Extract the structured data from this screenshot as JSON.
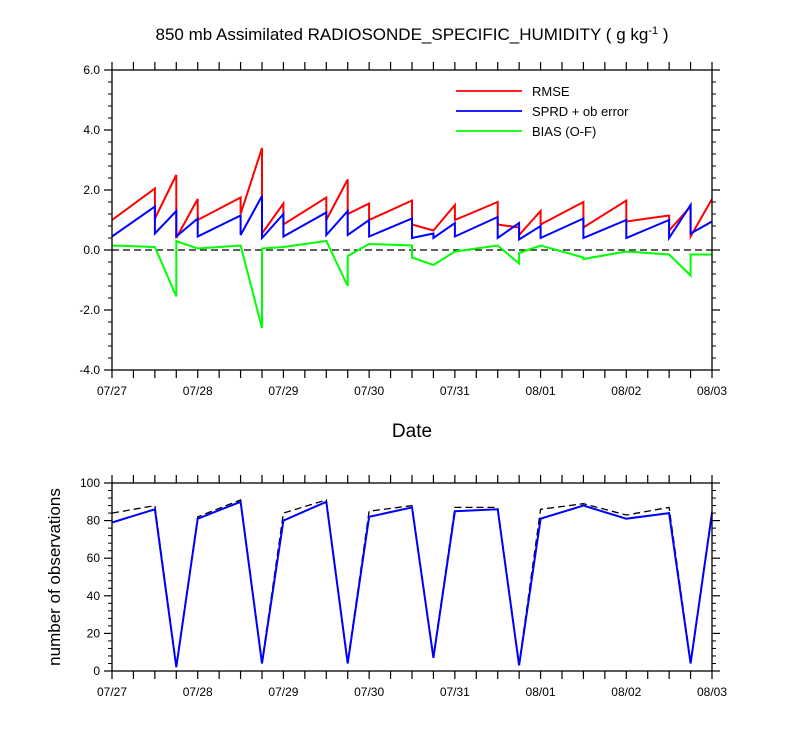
{
  "chart_data": [
    {
      "type": "line",
      "title": "850 mb Assimilated RADIOSONDE_SPECIFIC_HUMIDITY ( g kg",
      "title_superscript": "-1",
      "title_suffix": " )",
      "xlabel": "Date",
      "ylabel": "",
      "xlim": [
        0,
        7
      ],
      "ylim": [
        -4,
        6
      ],
      "yticks": [
        -4,
        -2,
        0,
        2,
        4,
        6
      ],
      "ytick_labels": [
        "-4.0",
        "-2.0",
        "0.0",
        "2.0",
        "4.0",
        "6.0"
      ],
      "xticks": [
        0,
        1,
        2,
        3,
        4,
        5,
        6,
        7
      ],
      "xtick_labels": [
        "07/27",
        "07/28",
        "07/29",
        "07/30",
        "07/31",
        "08/01",
        "08/02",
        "08/03"
      ],
      "zero_line": "dashed",
      "legend_position": "top-right",
      "series": [
        {
          "name": "RMSE",
          "color": "#ff0000",
          "points": [
            [
              0.0,
              1.0
            ],
            [
              0.5,
              2.05
            ],
            [
              0.5,
              1.05
            ],
            [
              0.75,
              2.5
            ],
            [
              0.75,
              0.4
            ],
            [
              1.0,
              1.7
            ],
            [
              1.0,
              1.0
            ],
            [
              1.5,
              1.75
            ],
            [
              1.5,
              1.2
            ],
            [
              1.75,
              3.4
            ],
            [
              1.75,
              0.55
            ],
            [
              2.0,
              1.55
            ],
            [
              2.0,
              0.85
            ],
            [
              2.5,
              1.75
            ],
            [
              2.5,
              1.0
            ],
            [
              2.75,
              2.35
            ],
            [
              2.75,
              1.2
            ],
            [
              3.0,
              1.55
            ],
            [
              3.0,
              1.0
            ],
            [
              3.5,
              1.65
            ],
            [
              3.5,
              0.85
            ],
            [
              3.75,
              0.65
            ],
            [
              4.0,
              1.5
            ],
            [
              4.0,
              1.0
            ],
            [
              4.5,
              1.6
            ],
            [
              4.5,
              0.85
            ],
            [
              4.75,
              0.75
            ],
            [
              4.75,
              0.5
            ],
            [
              5.0,
              1.3
            ],
            [
              5.0,
              0.85
            ],
            [
              5.5,
              1.6
            ],
            [
              5.5,
              0.75
            ],
            [
              6.0,
              1.65
            ],
            [
              6.0,
              0.95
            ],
            [
              6.5,
              1.15
            ],
            [
              6.5,
              0.65
            ],
            [
              6.75,
              1.45
            ],
            [
              6.75,
              0.45
            ],
            [
              7.0,
              1.7
            ]
          ]
        },
        {
          "name": "SPRD + ob error",
          "color": "#0000ff",
          "points": [
            [
              0.0,
              0.45
            ],
            [
              0.5,
              1.45
            ],
            [
              0.5,
              0.55
            ],
            [
              0.75,
              1.3
            ],
            [
              0.75,
              0.45
            ],
            [
              1.0,
              1.05
            ],
            [
              1.0,
              0.45
            ],
            [
              1.5,
              1.15
            ],
            [
              1.5,
              0.5
            ],
            [
              1.75,
              1.8
            ],
            [
              1.75,
              0.4
            ],
            [
              2.0,
              1.2
            ],
            [
              2.0,
              0.45
            ],
            [
              2.5,
              1.25
            ],
            [
              2.5,
              0.5
            ],
            [
              2.75,
              1.3
            ],
            [
              2.75,
              0.5
            ],
            [
              3.0,
              1.0
            ],
            [
              3.0,
              0.45
            ],
            [
              3.5,
              1.05
            ],
            [
              3.5,
              0.4
            ],
            [
              3.75,
              0.55
            ],
            [
              3.75,
              0.4
            ],
            [
              4.0,
              0.9
            ],
            [
              4.0,
              0.45
            ],
            [
              4.5,
              1.1
            ],
            [
              4.5,
              0.4
            ],
            [
              4.75,
              0.9
            ],
            [
              4.75,
              0.35
            ],
            [
              5.0,
              0.8
            ],
            [
              5.0,
              0.4
            ],
            [
              5.5,
              1.05
            ],
            [
              5.5,
              0.4
            ],
            [
              6.0,
              1.0
            ],
            [
              6.0,
              0.4
            ],
            [
              6.5,
              1.0
            ],
            [
              6.5,
              0.4
            ],
            [
              6.75,
              1.5
            ],
            [
              6.75,
              0.55
            ],
            [
              7.0,
              0.95
            ]
          ]
        },
        {
          "name": "BIAS (O-F)",
          "color": "#00ff00",
          "points": [
            [
              0.0,
              0.15
            ],
            [
              0.5,
              0.1
            ],
            [
              0.75,
              -1.55
            ],
            [
              0.75,
              0.3
            ],
            [
              1.0,
              0.05
            ],
            [
              1.5,
              0.15
            ],
            [
              1.75,
              -2.6
            ],
            [
              1.75,
              0.05
            ],
            [
              2.0,
              0.1
            ],
            [
              2.5,
              0.3
            ],
            [
              2.75,
              -1.2
            ],
            [
              2.75,
              -0.2
            ],
            [
              3.0,
              0.2
            ],
            [
              3.5,
              0.15
            ],
            [
              3.5,
              -0.25
            ],
            [
              3.75,
              -0.5
            ],
            [
              4.0,
              -0.05
            ],
            [
              4.5,
              0.15
            ],
            [
              4.75,
              -0.45
            ],
            [
              4.75,
              -0.1
            ],
            [
              5.0,
              0.15
            ],
            [
              5.5,
              -0.25
            ],
            [
              5.5,
              -0.3
            ],
            [
              6.0,
              -0.05
            ],
            [
              6.5,
              -0.15
            ],
            [
              6.75,
              -0.85
            ],
            [
              6.75,
              -0.15
            ],
            [
              7.0,
              -0.15
            ]
          ]
        }
      ]
    },
    {
      "type": "line",
      "title": "",
      "xlabel": "",
      "ylabel": "number of observations",
      "xlim": [
        0,
        7
      ],
      "ylim": [
        0,
        100
      ],
      "yticks": [
        0,
        20,
        40,
        60,
        80,
        100
      ],
      "ytick_labels": [
        "0",
        "20",
        "40",
        "60",
        "80",
        "100"
      ],
      "xticks": [
        0,
        1,
        2,
        3,
        4,
        5,
        6,
        7
      ],
      "xtick_labels": [
        "07/27",
        "07/28",
        "07/29",
        "07/30",
        "07/31",
        "08/01",
        "08/02",
        "08/03"
      ],
      "series": [
        {
          "style": "dashed",
          "color": "#000000",
          "points": [
            [
              0.0,
              84
            ],
            [
              0.5,
              88
            ],
            [
              0.75,
              3
            ],
            [
              1.0,
              82
            ],
            [
              1.5,
              91
            ],
            [
              1.75,
              5
            ],
            [
              2.0,
              84
            ],
            [
              2.5,
              91
            ],
            [
              2.75,
              5
            ],
            [
              3.0,
              85
            ],
            [
              3.5,
              88
            ],
            [
              3.75,
              8
            ],
            [
              4.0,
              87
            ],
            [
              4.5,
              87
            ],
            [
              4.75,
              4
            ],
            [
              5.0,
              86
            ],
            [
              5.5,
              89
            ],
            [
              6.0,
              83
            ],
            [
              6.5,
              87
            ],
            [
              6.75,
              5
            ],
            [
              7.0,
              85
            ]
          ]
        },
        {
          "style": "solid",
          "color": "#0000ff",
          "points": [
            [
              0.0,
              79
            ],
            [
              0.5,
              86
            ],
            [
              0.75,
              2
            ],
            [
              1.0,
              81
            ],
            [
              1.5,
              90
            ],
            [
              1.75,
              4
            ],
            [
              2.0,
              80
            ],
            [
              2.5,
              90
            ],
            [
              2.75,
              4
            ],
            [
              3.0,
              82
            ],
            [
              3.5,
              87
            ],
            [
              3.75,
              7
            ],
            [
              4.0,
              85
            ],
            [
              4.5,
              86
            ],
            [
              4.75,
              3
            ],
            [
              5.0,
              81
            ],
            [
              5.5,
              88
            ],
            [
              6.0,
              81
            ],
            [
              6.5,
              84
            ],
            [
              6.75,
              4
            ],
            [
              7.0,
              84
            ]
          ]
        }
      ]
    }
  ]
}
